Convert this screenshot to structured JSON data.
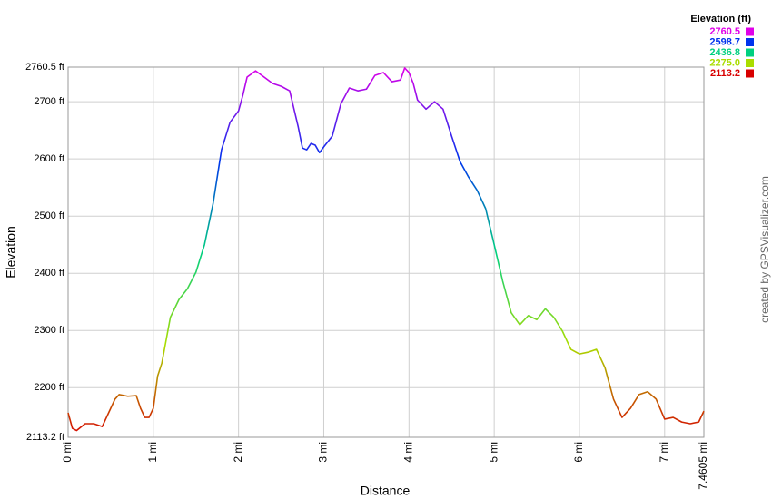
{
  "chart_data": {
    "type": "line",
    "x_label": "Distance",
    "y_label": "Elevation",
    "credit": "created by GPSVisualizer.com",
    "x": [
      0,
      0.05,
      0.1,
      0.2,
      0.3,
      0.4,
      0.5,
      0.55,
      0.6,
      0.7,
      0.8,
      0.85,
      0.9,
      0.95,
      1.0,
      1.05,
      1.1,
      1.15,
      1.2,
      1.3,
      1.4,
      1.5,
      1.6,
      1.7,
      1.8,
      1.9,
      2.0,
      2.05,
      2.1,
      2.2,
      2.3,
      2.4,
      2.5,
      2.6,
      2.7,
      2.75,
      2.8,
      2.85,
      2.9,
      2.95,
      3.0,
      3.1,
      3.2,
      3.3,
      3.4,
      3.5,
      3.6,
      3.7,
      3.8,
      3.9,
      3.95,
      4.0,
      4.05,
      4.1,
      4.2,
      4.3,
      4.4,
      4.5,
      4.6,
      4.7,
      4.8,
      4.9,
      5.0,
      5.1,
      5.2,
      5.3,
      5.4,
      5.5,
      5.6,
      5.7,
      5.8,
      5.9,
      6.0,
      6.1,
      6.2,
      6.3,
      6.4,
      6.5,
      6.6,
      6.7,
      6.8,
      6.9,
      7.0,
      7.1,
      7.2,
      7.3,
      7.4,
      7.4605
    ],
    "values": [
      2156,
      2129,
      2125,
      2137,
      2137,
      2132,
      2164,
      2180,
      2188,
      2185,
      2186,
      2164,
      2148,
      2148,
      2164,
      2220,
      2243,
      2283,
      2323,
      2354,
      2373,
      2402,
      2450,
      2521,
      2616,
      2664,
      2684,
      2711,
      2743,
      2754,
      2743,
      2732,
      2727,
      2719,
      2656,
      2619,
      2616,
      2627,
      2624,
      2611,
      2621,
      2640,
      2696,
      2724,
      2719,
      2722,
      2746,
      2751,
      2735,
      2738,
      2759,
      2751,
      2732,
      2703,
      2687,
      2700,
      2687,
      2640,
      2595,
      2568,
      2545,
      2513,
      2450,
      2386,
      2331,
      2310,
      2326,
      2319,
      2338,
      2323,
      2299,
      2267,
      2259,
      2262,
      2267,
      2235,
      2180,
      2148,
      2164,
      2188,
      2193,
      2180,
      2145,
      2148,
      2140,
      2137,
      2140,
      2159
    ],
    "xlim": [
      0,
      7.4605
    ],
    "ylim": [
      2113.2,
      2760.5
    ],
    "xticks": [
      {
        "value": 0,
        "label": "0 mi"
      },
      {
        "value": 1,
        "label": "1 mi"
      },
      {
        "value": 2,
        "label": "2 mi"
      },
      {
        "value": 3,
        "label": "3 mi"
      },
      {
        "value": 4,
        "label": "4 mi"
      },
      {
        "value": 5,
        "label": "5 mi"
      },
      {
        "value": 6,
        "label": "6 mi"
      },
      {
        "value": 7,
        "label": "7 mi"
      },
      {
        "value": 7.4605,
        "label": "7.4605 mi"
      }
    ],
    "yticks": [
      {
        "value": 2113.2,
        "label": "2113.2 ft"
      },
      {
        "value": 2200,
        "label": "2200 ft"
      },
      {
        "value": 2300,
        "label": "2300 ft"
      },
      {
        "value": 2400,
        "label": "2400 ft"
      },
      {
        "value": 2500,
        "label": "2500 ft"
      },
      {
        "value": 2600,
        "label": "2600 ft"
      },
      {
        "value": 2700,
        "label": "2700 ft"
      },
      {
        "value": 2760.5,
        "label": "2760.5 ft"
      }
    ],
    "grid": true,
    "legend": {
      "title": "Elevation (ft)",
      "entries": [
        {
          "value": 2760.5,
          "color": "#e000e8"
        },
        {
          "value": 2598.7,
          "color": "#0033ee"
        },
        {
          "value": 2436.8,
          "color": "#00d080"
        },
        {
          "value": 2275,
          "label": "2275.0",
          "color": "#aadd00"
        },
        {
          "value": 2113.2,
          "color": "#d80000"
        }
      ]
    }
  }
}
